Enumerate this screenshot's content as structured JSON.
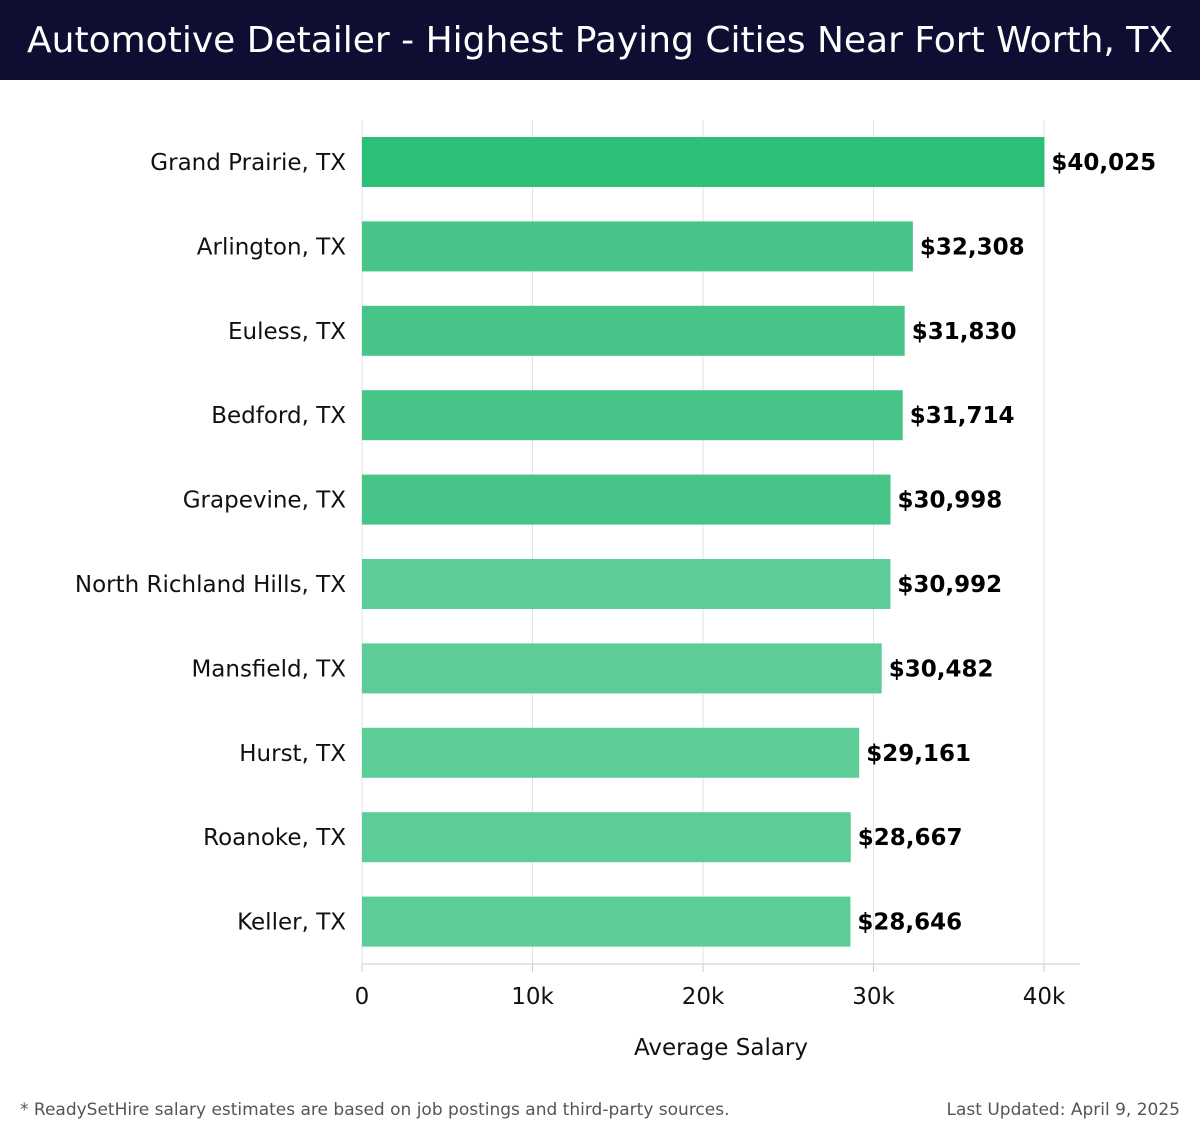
{
  "header": {
    "title": "Automotive Detailer - Highest Paying Cities Near Fort Worth, TX"
  },
  "chart_data": {
    "type": "bar",
    "orientation": "horizontal",
    "title": "Automotive Detailer - Highest Paying Cities Near Fort Worth, TX",
    "xlabel": "Average Salary",
    "ylabel": "",
    "xlim": [
      0,
      42000
    ],
    "x_ticks": [
      0,
      10000,
      20000,
      30000,
      40000
    ],
    "x_tick_labels": [
      "0",
      "10k",
      "20k",
      "30k",
      "40k"
    ],
    "grid": "vertical",
    "categories": [
      "Grand Prairie, TX",
      "Arlington, TX",
      "Euless, TX",
      "Bedford, TX",
      "Grapevine, TX",
      "North Richland Hills, TX",
      "Mansfield, TX",
      "Hurst, TX",
      "Roanoke, TX",
      "Keller, TX"
    ],
    "values": [
      40025,
      32308,
      31830,
      31714,
      30998,
      30992,
      30482,
      29161,
      28667,
      28646
    ],
    "value_labels": [
      "$40,025",
      "$32,308",
      "$31,830",
      "$31,714",
      "$30,998",
      "$30,992",
      "$30,482",
      "$29,161",
      "$28,667",
      "$28,646"
    ],
    "colors": {
      "top_bar": "#2bbf78",
      "bar_dark": "#47c487",
      "bar_light": "#5ccd97",
      "grid": "#e2e2e2",
      "axis": "#cccccc"
    }
  },
  "footer": {
    "note": "* ReadySetHire salary estimates are based on job postings and third-party sources.",
    "updated": "Last Updated: April 9, 2025"
  }
}
